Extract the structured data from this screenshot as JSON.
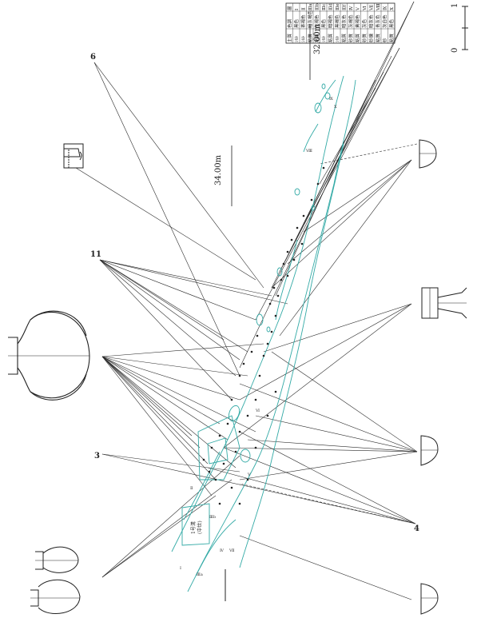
{
  "elevations": [
    "34.00m",
    "32.00m"
  ],
  "point_labels": [
    "6",
    "11",
    "3",
    "4"
  ],
  "area_label": [
    "1号溝",
    "(中世)"
  ],
  "layer_labels": [
    "Ⅰ",
    "Ⅱ",
    "Ⅲa",
    "Ⅲb",
    "Ⅳ",
    "Ⅴ",
    "Ⅵ",
    "Ⅶ",
    "Ⅷ",
    "Ⅸ",
    "Ⅹ"
  ],
  "legend": {
    "header": [
      "層",
      "色調",
      "土質"
    ],
    "rows": [
      [
        "Ⅰ",
        "黒色",
        "ｼﾙﾄ"
      ],
      [
        "Ⅱ",
        "茶褐色",
        "ｼﾙﾄ"
      ],
      [
        "Ⅲa",
        "暗灰褐色",
        "粘質"
      ],
      [
        "Ⅲb",
        "灰褐色",
        "粘質"
      ],
      [
        "Ⅲc",
        "黒色",
        "ｼﾙﾄ"
      ],
      [
        "Ⅲd",
        "暗褐色",
        "粘質"
      ],
      [
        "Ⅲe",
        "黒褐色",
        "ｼﾙﾄ"
      ],
      [
        "Ⅲf",
        "暗灰色",
        "粘質"
      ],
      [
        "Ⅳ",
        "灰褐色",
        "砂質"
      ],
      [
        "Ⅴ",
        "黄褐色",
        "粘質"
      ],
      [
        "Ⅵ",
        "灰色",
        "砂質"
      ],
      [
        "Ⅶ",
        "暗灰色",
        "砂礫"
      ],
      [
        "Ⅷ",
        "青灰色",
        "粘質"
      ],
      [
        "Ⅸ",
        "灰白色",
        "砂"
      ],
      [
        "Ⅹ",
        "黒色",
        "粘質"
      ]
    ]
  },
  "scale": {
    "ticks": [
      "0",
      "1"
    ]
  },
  "colors": {
    "feature_line": "#33aaa6",
    "ray_line": "#2a2a2a",
    "pottery": "#222222"
  }
}
